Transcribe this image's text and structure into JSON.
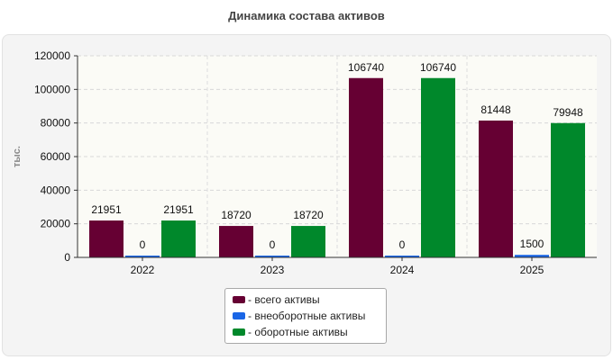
{
  "title": "Динамика состава активов",
  "chart_data": {
    "type": "bar",
    "title": "Динамика состава активов",
    "xlabel": "",
    "ylabel": "тыс.",
    "categories": [
      "2022",
      "2023",
      "2024",
      "2025"
    ],
    "ylim": [
      0,
      120000
    ],
    "yticks": [
      "0",
      "20000",
      "40000",
      "60000",
      "80000",
      "100000",
      "120000"
    ],
    "grid": true,
    "legend_position": "bottom",
    "series": [
      {
        "name": "всего активы",
        "color": "#660033",
        "values": [
          21951,
          18720,
          106740,
          81448
        ]
      },
      {
        "name": "внеоборотные активы",
        "color": "#1a66e6",
        "values": [
          0,
          0,
          0,
          1500
        ]
      },
      {
        "name": "оборотные активы",
        "color": "#00882b",
        "values": [
          21951,
          18720,
          106740,
          79948
        ]
      }
    ]
  },
  "legend": {
    "items": [
      {
        "label": "- всего активы",
        "color": "#660033"
      },
      {
        "label": "- внеоборотные активы",
        "color": "#1a66e6"
      },
      {
        "label": "- оборотные активы",
        "color": "#00882b"
      }
    ]
  }
}
